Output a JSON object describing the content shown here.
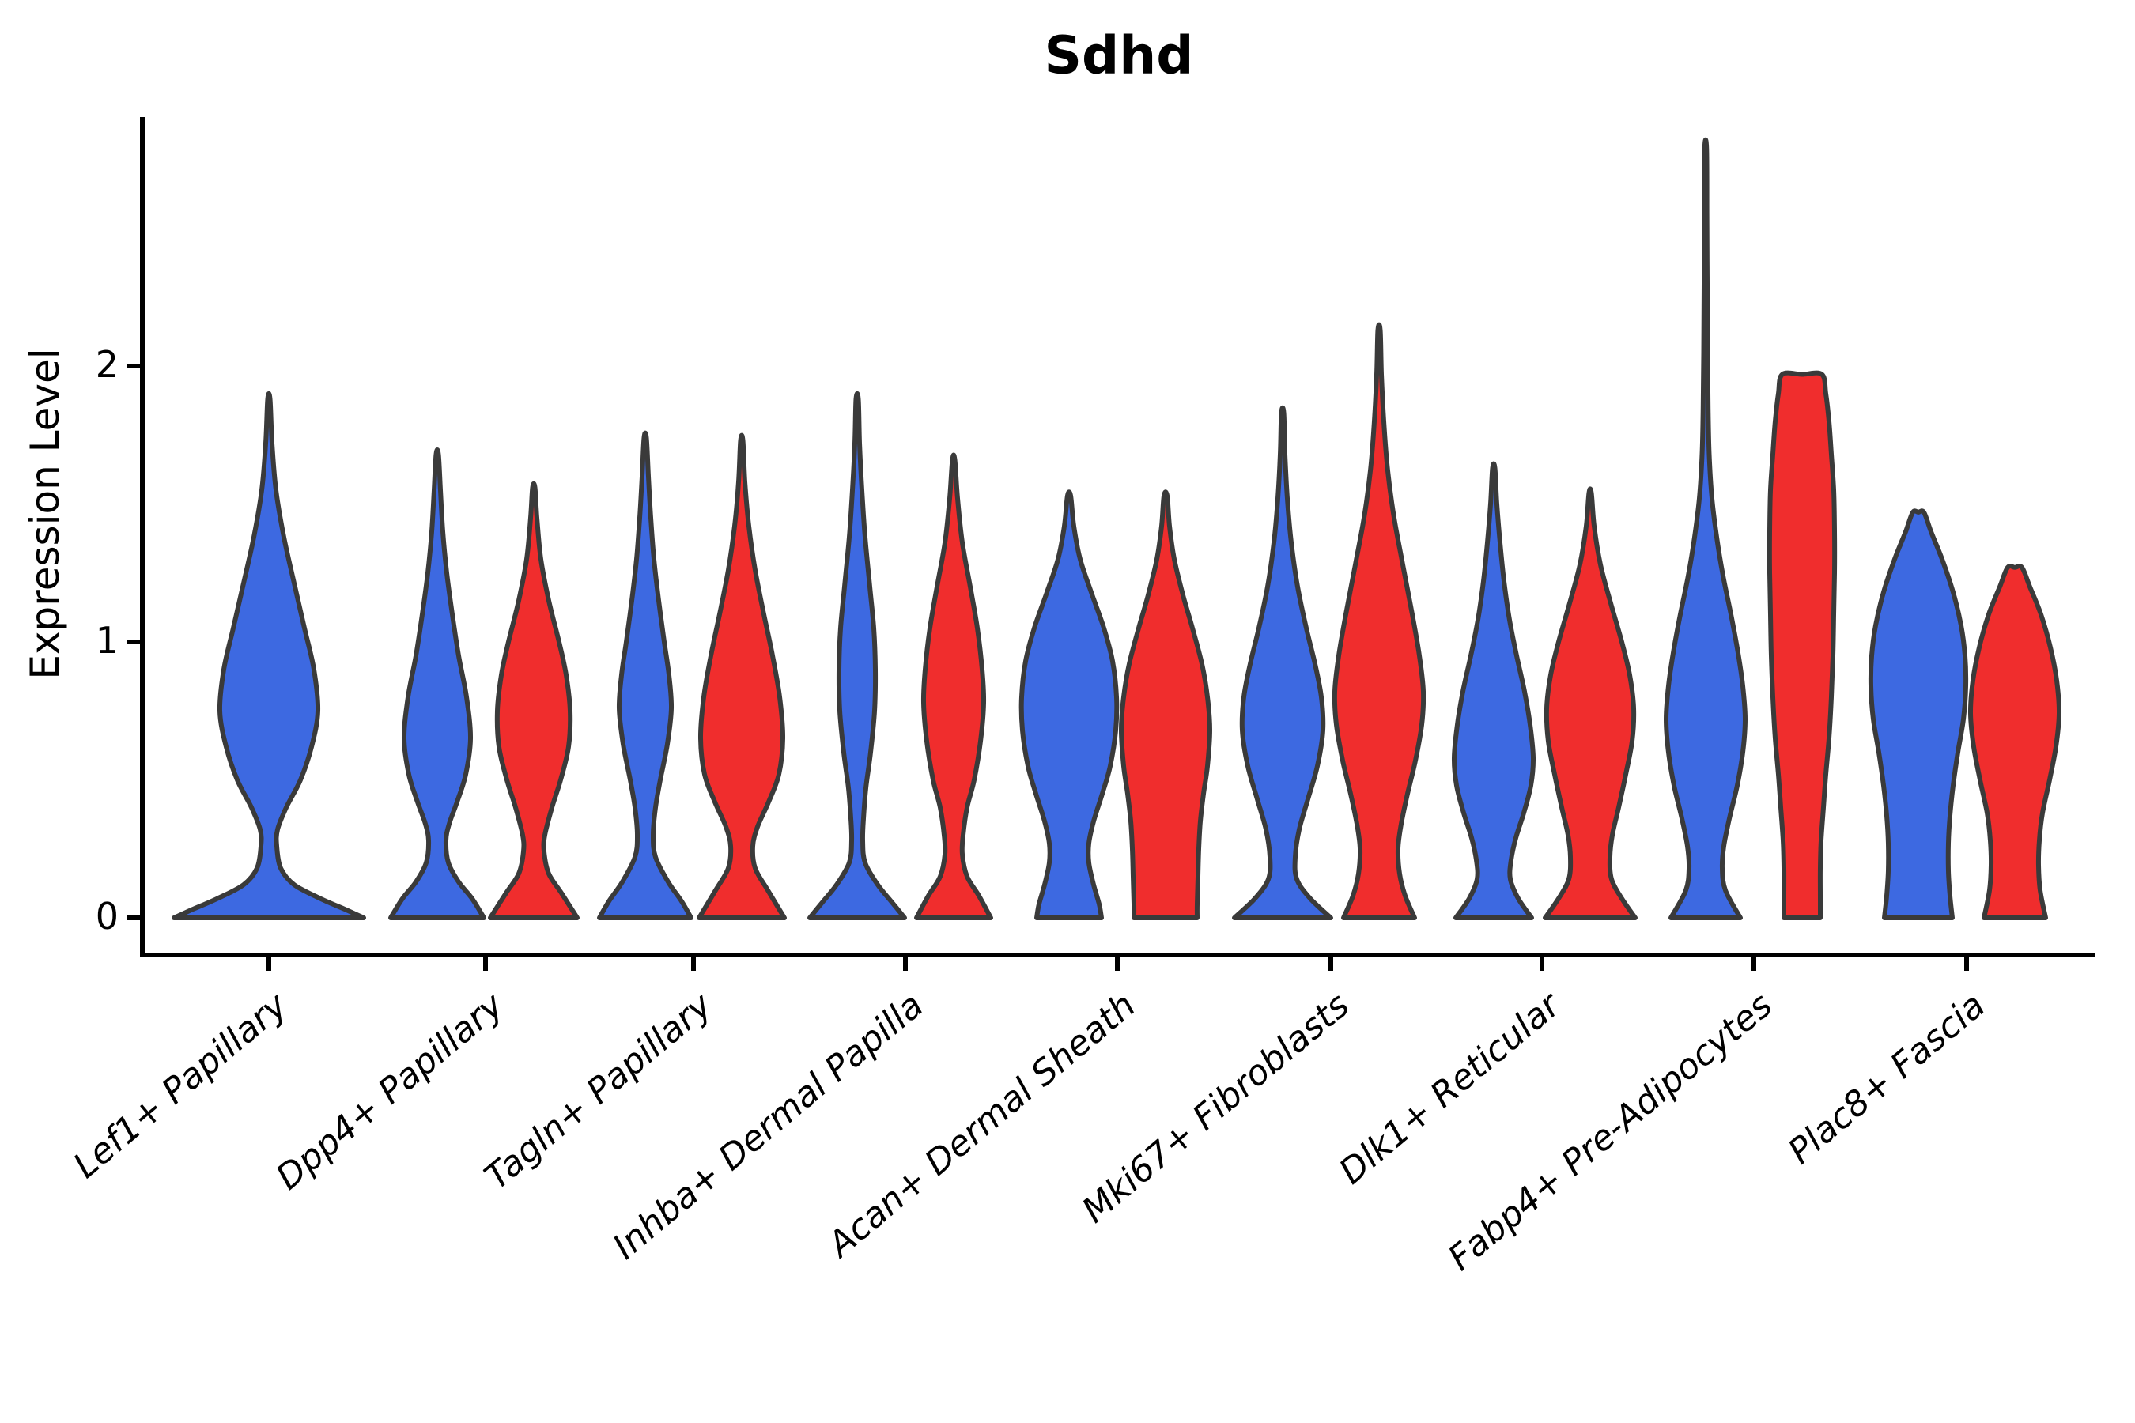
{
  "chart_data": {
    "type": "violin",
    "title": "Sdhd",
    "ylabel": "Expression Level",
    "xlabel": "",
    "y_ticks": [
      "0",
      "1",
      "2"
    ],
    "ylim": [
      0,
      2.9
    ],
    "grid": false,
    "legend": "none",
    "categories": [
      "Lef1+ Papillary",
      "Dpp4+ Papillary",
      "Tagln+ Papillary",
      "Inhba+ Dermal Papilla",
      "Acan+ Dermal Sheath",
      "Mki67+ Fibroblasts",
      "Dlk1+ Reticular",
      "Fabp4+ Pre-Adipocytes",
      "Plac8+ Fascia"
    ],
    "colors": {
      "blue": "#3D69E1",
      "red": "#F02D2D",
      "outline": "#3A3A3A",
      "axis": "#000000"
    },
    "violins": [
      {
        "category": "Lef1+ Papillary",
        "side": "full",
        "color": "blue",
        "peak_expression": 1.88,
        "profile": [
          [
            1.88,
            1.5
          ],
          [
            1.72,
            4
          ],
          [
            1.55,
            9
          ],
          [
            1.38,
            19
          ],
          [
            1.2,
            33
          ],
          [
            1.05,
            45
          ],
          [
            0.9,
            57
          ],
          [
            0.75,
            62
          ],
          [
            0.62,
            54
          ],
          [
            0.5,
            40
          ],
          [
            0.4,
            22
          ],
          [
            0.32,
            11
          ],
          [
            0.26,
            10
          ],
          [
            0.18,
            15
          ],
          [
            0.12,
            32
          ],
          [
            0.07,
            65
          ],
          [
            0.03,
            97
          ],
          [
            0,
            120
          ]
        ]
      },
      {
        "category": "Dpp4+ Papillary",
        "side": "left",
        "color": "blue",
        "peak_expression": 1.68,
        "profile": [
          [
            1.68,
            1.5
          ],
          [
            1.55,
            4
          ],
          [
            1.4,
            7
          ],
          [
            1.25,
            12
          ],
          [
            1.1,
            19
          ],
          [
            0.95,
            27
          ],
          [
            0.8,
            37
          ],
          [
            0.65,
            42
          ],
          [
            0.52,
            36
          ],
          [
            0.42,
            25
          ],
          [
            0.34,
            15
          ],
          [
            0.28,
            11
          ],
          [
            0.2,
            14
          ],
          [
            0.13,
            27
          ],
          [
            0.07,
            44
          ],
          [
            0,
            59
          ]
        ]
      },
      {
        "category": "Dpp4+ Papillary",
        "side": "right",
        "color": "red",
        "peak_expression": 1.56,
        "profile": [
          [
            1.56,
            1.5
          ],
          [
            1.45,
            4
          ],
          [
            1.3,
            9
          ],
          [
            1.15,
            19
          ],
          [
            1.0,
            32
          ],
          [
            0.88,
            41
          ],
          [
            0.75,
            46
          ],
          [
            0.62,
            44
          ],
          [
            0.5,
            34
          ],
          [
            0.4,
            23
          ],
          [
            0.3,
            14
          ],
          [
            0.24,
            13
          ],
          [
            0.16,
            19
          ],
          [
            0.09,
            35
          ],
          [
            0,
            55
          ]
        ]
      },
      {
        "category": "Tagln+ Papillary",
        "side": "left",
        "color": "blue",
        "peak_expression": 1.74,
        "profile": [
          [
            1.74,
            1.5
          ],
          [
            1.6,
            4
          ],
          [
            1.45,
            7
          ],
          [
            1.3,
            11
          ],
          [
            1.15,
            17
          ],
          [
            1.0,
            24
          ],
          [
            0.88,
            30
          ],
          [
            0.76,
            33
          ],
          [
            0.63,
            28
          ],
          [
            0.5,
            19
          ],
          [
            0.4,
            13
          ],
          [
            0.3,
            10
          ],
          [
            0.22,
            13
          ],
          [
            0.13,
            29
          ],
          [
            0.06,
            46
          ],
          [
            0,
            58
          ]
        ]
      },
      {
        "category": "Tagln+ Papillary",
        "side": "right",
        "color": "red",
        "peak_expression": 1.73,
        "profile": [
          [
            1.73,
            1.5
          ],
          [
            1.58,
            4
          ],
          [
            1.42,
            9
          ],
          [
            1.26,
            17
          ],
          [
            1.1,
            28
          ],
          [
            0.95,
            39
          ],
          [
            0.8,
            48
          ],
          [
            0.65,
            52
          ],
          [
            0.52,
            47
          ],
          [
            0.42,
            34
          ],
          [
            0.33,
            20
          ],
          [
            0.26,
            14
          ],
          [
            0.18,
            17
          ],
          [
            0.1,
            33
          ],
          [
            0,
            54
          ]
        ]
      },
      {
        "category": "Inhba+ Dermal Papilla",
        "side": "left",
        "color": "blue",
        "peak_expression": 1.88,
        "profile": [
          [
            1.88,
            1.5
          ],
          [
            1.72,
            3
          ],
          [
            1.55,
            6
          ],
          [
            1.38,
            10
          ],
          [
            1.2,
            16
          ],
          [
            1.05,
            21
          ],
          [
            0.9,
            23
          ],
          [
            0.75,
            22
          ],
          [
            0.6,
            17
          ],
          [
            0.47,
            11
          ],
          [
            0.36,
            8
          ],
          [
            0.28,
            7
          ],
          [
            0.2,
            10
          ],
          [
            0.12,
            26
          ],
          [
            0.06,
            43
          ],
          [
            0,
            60
          ]
        ]
      },
      {
        "category": "Inhba+ Dermal Papilla",
        "side": "right",
        "color": "red",
        "peak_expression": 1.66,
        "profile": [
          [
            1.66,
            1.5
          ],
          [
            1.52,
            5
          ],
          [
            1.36,
            11
          ],
          [
            1.2,
            21
          ],
          [
            1.05,
            30
          ],
          [
            0.9,
            36
          ],
          [
            0.78,
            38
          ],
          [
            0.64,
            34
          ],
          [
            0.5,
            26
          ],
          [
            0.4,
            17
          ],
          [
            0.3,
            12
          ],
          [
            0.23,
            11
          ],
          [
            0.15,
            17
          ],
          [
            0.08,
            32
          ],
          [
            0,
            47
          ]
        ]
      },
      {
        "category": "Acan+ Dermal Sheath",
        "side": "left",
        "color": "blue",
        "peak_expression": 1.53,
        "profile": [
          [
            1.53,
            2
          ],
          [
            1.42,
            6
          ],
          [
            1.3,
            14
          ],
          [
            1.18,
            28
          ],
          [
            1.05,
            44
          ],
          [
            0.93,
            55
          ],
          [
            0.8,
            60
          ],
          [
            0.68,
            59
          ],
          [
            0.55,
            52
          ],
          [
            0.45,
            42
          ],
          [
            0.35,
            31
          ],
          [
            0.27,
            25
          ],
          [
            0.2,
            25
          ],
          [
            0.12,
            31
          ],
          [
            0.05,
            38
          ],
          [
            0,
            41
          ]
        ]
      },
      {
        "category": "Acan+ Dermal Sheath",
        "side": "right",
        "color": "red",
        "peak_expression": 1.53,
        "profile": [
          [
            1.53,
            2
          ],
          [
            1.42,
            5
          ],
          [
            1.3,
            11
          ],
          [
            1.17,
            22
          ],
          [
            1.05,
            34
          ],
          [
            0.92,
            46
          ],
          [
            0.8,
            53
          ],
          [
            0.68,
            56
          ],
          [
            0.55,
            53
          ],
          [
            0.45,
            48
          ],
          [
            0.35,
            44
          ],
          [
            0.25,
            42
          ],
          [
            0.15,
            41
          ],
          [
            0.05,
            40
          ],
          [
            0,
            40
          ]
        ]
      },
      {
        "category": "Mki67+ Fibroblasts",
        "side": "left",
        "color": "blue",
        "peak_expression": 1.83,
        "profile": [
          [
            1.83,
            1.5
          ],
          [
            1.68,
            3
          ],
          [
            1.52,
            6
          ],
          [
            1.36,
            11
          ],
          [
            1.2,
            19
          ],
          [
            1.05,
            30
          ],
          [
            0.92,
            41
          ],
          [
            0.8,
            49
          ],
          [
            0.68,
            51
          ],
          [
            0.55,
            44
          ],
          [
            0.43,
            32
          ],
          [
            0.32,
            21
          ],
          [
            0.22,
            16
          ],
          [
            0.14,
            18
          ],
          [
            0.07,
            35
          ],
          [
            0,
            61
          ]
        ]
      },
      {
        "category": "Mki67+ Fibroblasts",
        "side": "right",
        "color": "red",
        "peak_expression": 2.13,
        "profile": [
          [
            2.13,
            1.5
          ],
          [
            1.97,
            3
          ],
          [
            1.8,
            6
          ],
          [
            1.62,
            11
          ],
          [
            1.45,
            19
          ],
          [
            1.28,
            30
          ],
          [
            1.1,
            42
          ],
          [
            0.95,
            51
          ],
          [
            0.82,
            56
          ],
          [
            0.7,
            54
          ],
          [
            0.57,
            46
          ],
          [
            0.45,
            36
          ],
          [
            0.34,
            28
          ],
          [
            0.25,
            24
          ],
          [
            0.16,
            26
          ],
          [
            0.08,
            33
          ],
          [
            0,
            45
          ]
        ]
      },
      {
        "category": "Dlk1+ Reticular",
        "side": "left",
        "color": "blue",
        "peak_expression": 1.63,
        "profile": [
          [
            1.63,
            1.5
          ],
          [
            1.5,
            4
          ],
          [
            1.36,
            8
          ],
          [
            1.22,
            13
          ],
          [
            1.08,
            20
          ],
          [
            0.95,
            29
          ],
          [
            0.82,
            39
          ],
          [
            0.7,
            46
          ],
          [
            0.58,
            50
          ],
          [
            0.48,
            47
          ],
          [
            0.38,
            38
          ],
          [
            0.29,
            28
          ],
          [
            0.21,
            22
          ],
          [
            0.14,
            21
          ],
          [
            0.07,
            31
          ],
          [
            0,
            48
          ]
        ]
      },
      {
        "category": "Dlk1+ Reticular",
        "side": "right",
        "color": "red",
        "peak_expression": 1.54,
        "profile": [
          [
            1.54,
            1.5
          ],
          [
            1.42,
            5
          ],
          [
            1.28,
            13
          ],
          [
            1.14,
            26
          ],
          [
            1.0,
            40
          ],
          [
            0.88,
            50
          ],
          [
            0.76,
            55
          ],
          [
            0.64,
            53
          ],
          [
            0.52,
            45
          ],
          [
            0.4,
            36
          ],
          [
            0.3,
            28
          ],
          [
            0.22,
            25
          ],
          [
            0.14,
            27
          ],
          [
            0.07,
            40
          ],
          [
            0,
            57
          ]
        ]
      },
      {
        "category": "Fabp4+ Pre-Adipocytes",
        "side": "left",
        "color": "blue",
        "peak_expression": 2.79,
        "profile": [
          [
            2.79,
            1.2
          ],
          [
            2.55,
            1.6
          ],
          [
            2.3,
            2
          ],
          [
            2.05,
            2.5
          ],
          [
            1.85,
            3.2
          ],
          [
            1.68,
            4.5
          ],
          [
            1.52,
            8
          ],
          [
            1.38,
            14
          ],
          [
            1.24,
            22
          ],
          [
            1.1,
            32
          ],
          [
            0.96,
            41
          ],
          [
            0.84,
            47
          ],
          [
            0.72,
            50
          ],
          [
            0.6,
            47
          ],
          [
            0.48,
            40
          ],
          [
            0.36,
            30
          ],
          [
            0.26,
            23
          ],
          [
            0.18,
            21
          ],
          [
            0.1,
            25
          ],
          [
            0,
            44
          ]
        ]
      },
      {
        "category": "Fabp4+ Pre-Adipocytes",
        "side": "right",
        "color": "red",
        "peak_expression": 1.97,
        "profile": [
          [
            1.97,
            25
          ],
          [
            1.9,
            30
          ],
          [
            1.8,
            34
          ],
          [
            1.68,
            37
          ],
          [
            1.55,
            40
          ],
          [
            1.4,
            41
          ],
          [
            1.25,
            41
          ],
          [
            1.1,
            40
          ],
          [
            0.95,
            39
          ],
          [
            0.8,
            37
          ],
          [
            0.65,
            34
          ],
          [
            0.52,
            30
          ],
          [
            0.4,
            27
          ],
          [
            0.28,
            24
          ],
          [
            0.18,
            23
          ],
          [
            0.08,
            23
          ],
          [
            0,
            23
          ]
        ]
      },
      {
        "category": "Plac8+ Fascia",
        "side": "left",
        "color": "blue",
        "peak_expression": 1.47,
        "profile": [
          [
            1.47,
            7
          ],
          [
            1.4,
            16
          ],
          [
            1.3,
            30
          ],
          [
            1.18,
            44
          ],
          [
            1.06,
            54
          ],
          [
            0.95,
            59
          ],
          [
            0.84,
            60
          ],
          [
            0.72,
            57
          ],
          [
            0.6,
            50
          ],
          [
            0.48,
            44
          ],
          [
            0.37,
            40
          ],
          [
            0.27,
            38
          ],
          [
            0.17,
            38
          ],
          [
            0.08,
            40
          ],
          [
            0,
            43
          ]
        ]
      },
      {
        "category": "Plac8+ Fascia",
        "side": "right",
        "color": "red",
        "peak_expression": 1.27,
        "profile": [
          [
            1.27,
            9
          ],
          [
            1.2,
            19
          ],
          [
            1.1,
            33
          ],
          [
            0.98,
            45
          ],
          [
            0.86,
            53
          ],
          [
            0.74,
            56
          ],
          [
            0.62,
            52
          ],
          [
            0.5,
            44
          ],
          [
            0.38,
            35
          ],
          [
            0.28,
            31
          ],
          [
            0.19,
            30
          ],
          [
            0.1,
            32
          ],
          [
            0,
            39
          ]
        ]
      }
    ]
  }
}
